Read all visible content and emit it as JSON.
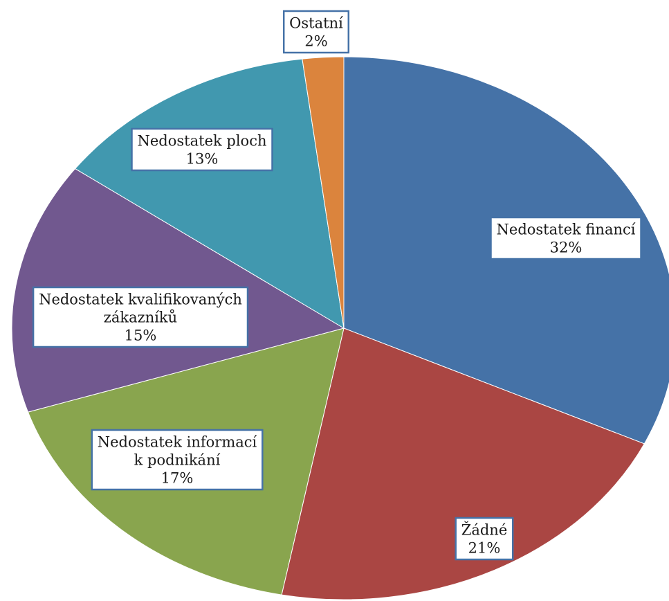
{
  "chart_data": {
    "type": "pie",
    "title": "",
    "start_angle_deg": 0,
    "direction": "clockwise",
    "slices": [
      {
        "label_lines": [
          "Nedostatek financí"
        ],
        "value": 32,
        "value_label": "32%",
        "color": "#4572A7"
      },
      {
        "label_lines": [
          "Žádné"
        ],
        "value": 21,
        "value_label": "21%",
        "color": "#AA4643"
      },
      {
        "label_lines": [
          "Nedostatek informací",
          "k podnikání"
        ],
        "value": 17,
        "value_label": "17%",
        "color": "#89A54E"
      },
      {
        "label_lines": [
          "Nedostatek kvalifikovaných",
          "zákazníků"
        ],
        "value": 15,
        "value_label": "15%",
        "color": "#71588F"
      },
      {
        "label_lines": [
          "Nedostatek ploch"
        ],
        "value": 13,
        "value_label": "13%",
        "color": "#4198AF"
      },
      {
        "label_lines": [
          "Ostatní"
        ],
        "value": 2,
        "value_label": "2%",
        "color": "#DB843D"
      }
    ],
    "legend": "none",
    "label_border_color": "#4572A7"
  }
}
